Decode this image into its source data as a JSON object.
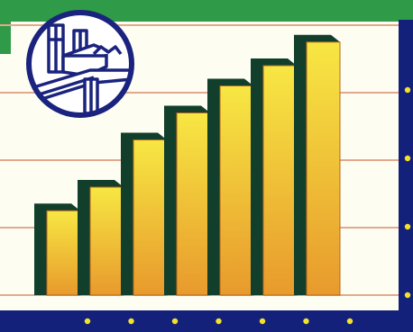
{
  "colors": {
    "top_band": "#2f9a47",
    "plot_background": "#fdfdf2",
    "frame": "#14217a",
    "frame_dots": "#f3e12b",
    "gridline": "#e3a98d",
    "bar_side": "#123f2b",
    "bar_gradient": [
      "#e89a2c",
      "#f7e743"
    ]
  },
  "emblem": {
    "icon": "industrial-buildings-icon"
  },
  "chart_data": {
    "type": "bar",
    "title": "",
    "xlabel": "",
    "ylabel": "",
    "categories": [
      "",
      "",
      "",
      "",
      "",
      "",
      ""
    ],
    "values": [
      1.25,
      1.6,
      2.3,
      2.7,
      3.1,
      3.4,
      3.75
    ],
    "ylim": [
      0,
      4
    ],
    "grid": true,
    "legend": "none"
  }
}
